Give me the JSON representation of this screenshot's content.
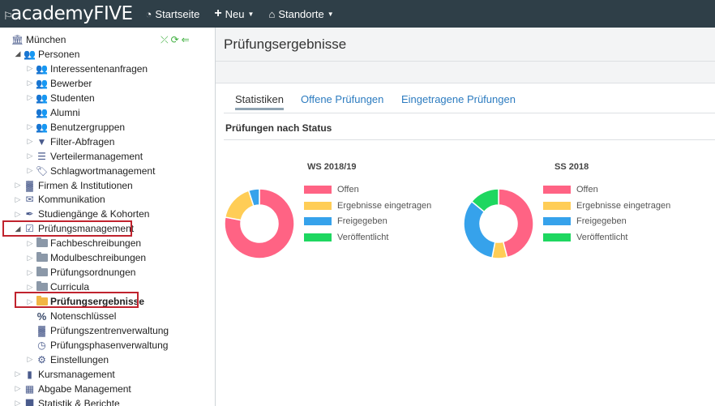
{
  "topbar": {
    "logo": "academyFIVE",
    "logo_cap": "⚐",
    "nav": [
      {
        "label": "Startseite",
        "icon": "dashboard-icon"
      },
      {
        "label": "Neu",
        "icon": "plus-icon"
      },
      {
        "label": "Standorte",
        "icon": "home-icon"
      }
    ]
  },
  "tree": {
    "items": [
      {
        "label": "München",
        "icon": "building-icon",
        "level": 0,
        "expander": "",
        "bold": false
      },
      {
        "label": "Personen",
        "icon": "people-icon",
        "level": 1,
        "expander": "open",
        "bold": false
      },
      {
        "label": "Interessentenanfragen",
        "icon": "people-icon",
        "level": 2,
        "expander": "closed",
        "bold": false
      },
      {
        "label": "Bewerber",
        "icon": "people-icon",
        "level": 2,
        "expander": "closed",
        "bold": false
      },
      {
        "label": "Studenten",
        "icon": "people-icon",
        "level": 2,
        "expander": "closed",
        "bold": false
      },
      {
        "label": "Alumni",
        "icon": "people-icon",
        "level": 2,
        "expander": "",
        "bold": false
      },
      {
        "label": "Benutzergruppen",
        "icon": "people-icon",
        "level": 2,
        "expander": "closed",
        "bold": false
      },
      {
        "label": "Filter-Abfragen",
        "icon": "filter-icon",
        "level": 2,
        "expander": "closed",
        "bold": false
      },
      {
        "label": "Verteilermanagement",
        "icon": "list-icon",
        "level": 2,
        "expander": "closed",
        "bold": false
      },
      {
        "label": "Schlagwortmanagement",
        "icon": "tag-icon",
        "level": 2,
        "expander": "closed",
        "bold": false
      },
      {
        "label": "Firmen & Institutionen",
        "icon": "factory-icon",
        "level": 1,
        "expander": "closed",
        "bold": false
      },
      {
        "label": "Kommunikation",
        "icon": "envelope-icon",
        "level": 1,
        "expander": "closed",
        "bold": false
      },
      {
        "label": "Studiengänge & Kohorten",
        "icon": "feather-icon",
        "level": 1,
        "expander": "closed",
        "bold": false
      },
      {
        "label": "Prüfungsmanagement",
        "icon": "exam-icon",
        "level": 1,
        "expander": "open",
        "bold": false
      },
      {
        "label": "Fachbeschreibungen",
        "icon": "folder-icon",
        "level": 2,
        "expander": "closed",
        "bold": false
      },
      {
        "label": "Modulbeschreibungen",
        "icon": "folder-icon",
        "level": 2,
        "expander": "closed",
        "bold": false
      },
      {
        "label": "Prüfungsordnungen",
        "icon": "folder-icon",
        "level": 2,
        "expander": "closed",
        "bold": false
      },
      {
        "label": "Curricula",
        "icon": "folder-icon",
        "level": 2,
        "expander": "closed",
        "bold": false
      },
      {
        "label": "Prüfungsergebnisse",
        "icon": "folder-open-icon",
        "level": 2,
        "expander": "closed",
        "bold": true
      },
      {
        "label": "Notenschlüssel",
        "icon": "percent-icon",
        "level": 2,
        "expander": "",
        "bold": false
      },
      {
        "label": "Prüfungszentrenverwaltung",
        "icon": "factory-icon",
        "level": 2,
        "expander": "",
        "bold": false
      },
      {
        "label": "Prüfungsphasenverwaltung",
        "icon": "clock-icon",
        "level": 2,
        "expander": "",
        "bold": false
      },
      {
        "label": "Einstellungen",
        "icon": "gear-icon",
        "level": 2,
        "expander": "closed",
        "bold": false
      },
      {
        "label": "Kursmanagement",
        "icon": "book-icon",
        "level": 1,
        "expander": "closed",
        "bold": false
      },
      {
        "label": "Abgabe Management",
        "icon": "calendar-icon",
        "level": 1,
        "expander": "closed",
        "bold": false
      },
      {
        "label": "Statistik & Berichte",
        "icon": "chart-icon",
        "level": 1,
        "expander": "closed",
        "bold": false
      }
    ]
  },
  "page": {
    "title": "Prüfungsergebnisse",
    "tabs": [
      {
        "label": "Statistiken",
        "active": true
      },
      {
        "label": "Offene Prüfungen",
        "active": false
      },
      {
        "label": "Eingetragene Prüfungen",
        "active": false
      }
    ],
    "section_title": "Prüfungen nach Status"
  },
  "colors": {
    "offen": "#ff6384",
    "ergebnisse": "#ffcd56",
    "freigegeben": "#36a2eb",
    "veroeffentlicht": "#1ed760",
    "topbar": "#2f3f48",
    "link": "#2d7cc0"
  },
  "chart_data": [
    {
      "type": "pie",
      "title": "WS 2018/19",
      "categories": [
        "Offen",
        "Ergebnisse eingetragen",
        "Freigegeben",
        "Veröffentlicht"
      ],
      "values": [
        78,
        17,
        5,
        0
      ]
    },
    {
      "type": "pie",
      "title": "SS 2018",
      "categories": [
        "Offen",
        "Ergebnisse eingetragen",
        "Freigegeben",
        "Veröffentlicht"
      ],
      "values": [
        46,
        7,
        33,
        14
      ]
    }
  ]
}
